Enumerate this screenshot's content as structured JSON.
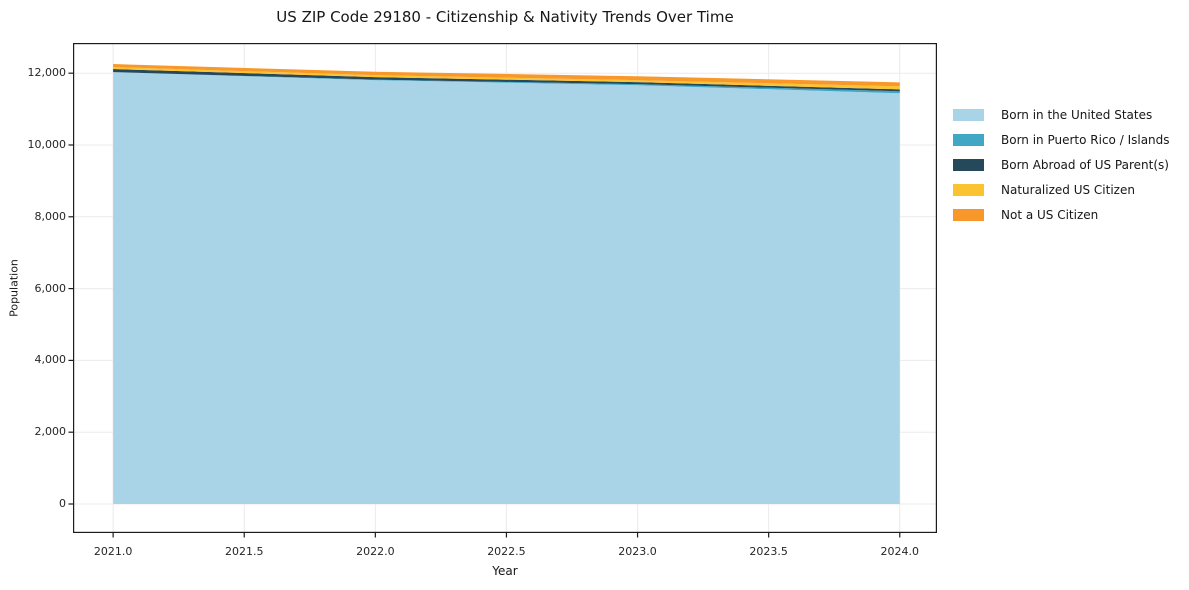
{
  "figure": {
    "background": "#ffffff",
    "frame_color": "#1c1c1c",
    "grid_color": "#ebebeb",
    "text_color": "#171717"
  },
  "chart_data": {
    "type": "area",
    "stacked": true,
    "title": "US ZIP Code 29180 - Citizenship & Nativity Trends Over Time",
    "xlabel": "Year",
    "ylabel": "Population",
    "x": [
      2021,
      2022,
      2023,
      2024
    ],
    "series": [
      {
        "name": "Born in the United States",
        "color": "#A9D4E8",
        "values": [
          12030,
          11805,
          11665,
          11440
        ]
      },
      {
        "name": "Born in Puerto Rico / Islands",
        "color": "#42A7C5",
        "values": [
          0,
          15,
          30,
          55
        ]
      },
      {
        "name": "Born Abroad of US Parent(s)",
        "color": "#26485B",
        "values": [
          85,
          70,
          55,
          55
        ]
      },
      {
        "name": "Naturalized US Citizen",
        "color": "#FCC330",
        "values": [
          55,
          55,
          55,
          85
        ]
      },
      {
        "name": "Not a US Citizen",
        "color": "#F8982A",
        "values": [
          85,
          95,
          110,
          110
        ]
      }
    ],
    "xlim": [
      2020.847,
      2024.142
    ],
    "ylim": [
      -808,
      12841
    ],
    "xticks": [
      {
        "value": 2021.0,
        "label": "2021.0"
      },
      {
        "value": 2021.5,
        "label": "2021.5"
      },
      {
        "value": 2022.0,
        "label": "2022.0"
      },
      {
        "value": 2022.5,
        "label": "2022.5"
      },
      {
        "value": 2023.0,
        "label": "2023.0"
      },
      {
        "value": 2023.5,
        "label": "2023.5"
      },
      {
        "value": 2024.0,
        "label": "2024.0"
      }
    ],
    "yticks": [
      {
        "value": 0,
        "label": "0"
      },
      {
        "value": 2000,
        "label": "2,000"
      },
      {
        "value": 4000,
        "label": "4,000"
      },
      {
        "value": 6000,
        "label": "6,000"
      },
      {
        "value": 8000,
        "label": "8,000"
      },
      {
        "value": 10000,
        "label": "10,000"
      },
      {
        "value": 12000,
        "label": "12,000"
      }
    ],
    "grid": true,
    "legend_position": "right-of-plot"
  }
}
